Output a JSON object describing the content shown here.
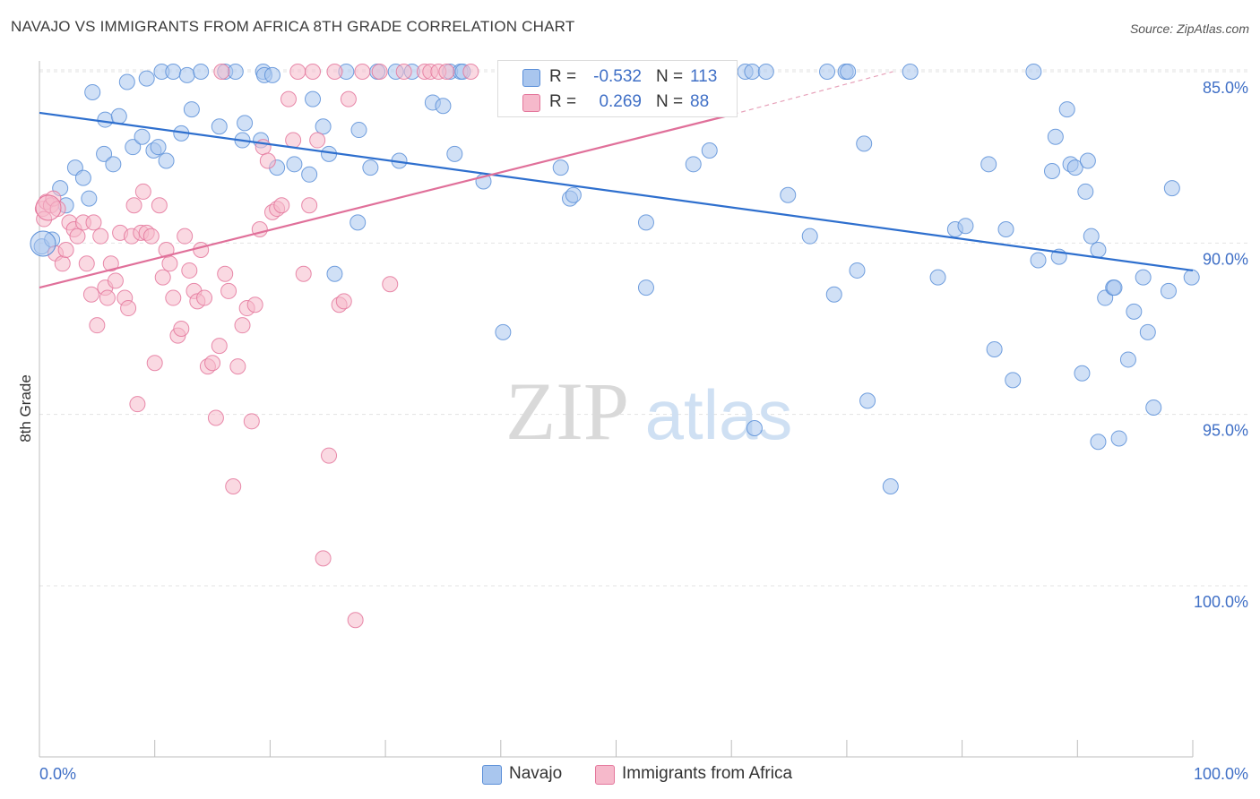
{
  "title": "NAVAJO VS IMMIGRANTS FROM AFRICA 8TH GRADE CORRELATION CHART",
  "source": "Source: ZipAtlas.com",
  "watermark": {
    "zip": "ZIP",
    "atlas": "atlas"
  },
  "legend": {
    "rows": [
      {
        "r_label": "R =",
        "r_value": "-0.532",
        "n_label": "N =",
        "n_value": "113",
        "color": "#a9c6ee"
      },
      {
        "r_label": "R =",
        "r_value": "0.269",
        "n_label": "N =",
        "n_value": "88",
        "color": "#f6b9cb"
      }
    ]
  },
  "bottom_legend": {
    "navajo": "Navajo",
    "africa": "Immigrants from Africa"
  },
  "axes": {
    "x_left": "0.0%",
    "x_right": "100.0%",
    "y_ticks": [
      "100.0%",
      "95.0%",
      "90.0%",
      "85.0%"
    ],
    "ylabel": "8th Grade"
  },
  "chart_data": {
    "type": "scatter",
    "xlabel": "",
    "ylabel": "8th Grade",
    "xlim": [
      0,
      100
    ],
    "ylim": [
      80.5,
      100.8
    ],
    "y_ticks": [
      85,
      90,
      95,
      100
    ],
    "grid": true,
    "series": [
      {
        "name": "Navajo",
        "color": "#5b8fd8",
        "fill": "#a9c6ee",
        "trend": {
          "x0": 0,
          "y0": 98.8,
          "x1": 100,
          "y1": 94.2
        },
        "points": [
          [
            0.2,
            94.9
          ],
          [
            1.1,
            95.1
          ],
          [
            1.8,
            96.6
          ],
          [
            2.3,
            96.1
          ],
          [
            3.1,
            97.2
          ],
          [
            3.8,
            96.9
          ],
          [
            4.3,
            96.3
          ],
          [
            4.6,
            99.4
          ],
          [
            5.6,
            97.6
          ],
          [
            5.7,
            98.6
          ],
          [
            6.4,
            97.3
          ],
          [
            6.9,
            98.7
          ],
          [
            7.6,
            99.7
          ],
          [
            8.1,
            97.8
          ],
          [
            8.9,
            98.1
          ],
          [
            9.3,
            99.8
          ],
          [
            9.9,
            97.7
          ],
          [
            10.3,
            97.8
          ],
          [
            10.6,
            100.0
          ],
          [
            11.0,
            97.4
          ],
          [
            11.6,
            100.0
          ],
          [
            12.3,
            98.2
          ],
          [
            12.8,
            99.9
          ],
          [
            13.2,
            98.9
          ],
          [
            14.0,
            100.0
          ],
          [
            15.6,
            98.4
          ],
          [
            16.1,
            100.0
          ],
          [
            17.0,
            100.0
          ],
          [
            17.6,
            98.0
          ],
          [
            17.8,
            98.5
          ],
          [
            19.2,
            98.0
          ],
          [
            19.4,
            100.0
          ],
          [
            19.5,
            99.9
          ],
          [
            20.2,
            99.9
          ],
          [
            20.6,
            97.2
          ],
          [
            22.1,
            97.3
          ],
          [
            23.4,
            97.0
          ],
          [
            23.7,
            99.2
          ],
          [
            24.6,
            98.4
          ],
          [
            25.1,
            97.6
          ],
          [
            25.6,
            94.1
          ],
          [
            26.6,
            100.0
          ],
          [
            27.6,
            95.6
          ],
          [
            27.7,
            98.3
          ],
          [
            28.7,
            97.2
          ],
          [
            29.3,
            100.0
          ],
          [
            30.9,
            100.0
          ],
          [
            31.2,
            97.4
          ],
          [
            32.3,
            100.0
          ],
          [
            34.1,
            99.1
          ],
          [
            35.0,
            99.0
          ],
          [
            35.6,
            100.0
          ],
          [
            36.0,
            97.6
          ],
          [
            36.5,
            100.0
          ],
          [
            36.7,
            100.0
          ],
          [
            38.5,
            96.8
          ],
          [
            40.2,
            92.4
          ],
          [
            45.2,
            97.2
          ],
          [
            46.0,
            96.3
          ],
          [
            46.3,
            96.4
          ],
          [
            52.6,
            95.6
          ],
          [
            52.6,
            93.7
          ],
          [
            54.3,
            100.0
          ],
          [
            56.7,
            97.3
          ],
          [
            58.1,
            97.7
          ],
          [
            61.2,
            100.0
          ],
          [
            61.8,
            100.0
          ],
          [
            62.0,
            89.6
          ],
          [
            63.0,
            100.0
          ],
          [
            64.9,
            96.4
          ],
          [
            66.8,
            95.2
          ],
          [
            68.3,
            100.0
          ],
          [
            68.9,
            93.5
          ],
          [
            69.9,
            100.0
          ],
          [
            70.1,
            100.0
          ],
          [
            70.9,
            94.2
          ],
          [
            71.5,
            97.9
          ],
          [
            71.8,
            90.4
          ],
          [
            73.8,
            87.9
          ],
          [
            75.5,
            100.0
          ],
          [
            77.9,
            94.0
          ],
          [
            79.4,
            95.4
          ],
          [
            80.3,
            95.5
          ],
          [
            82.3,
            97.3
          ],
          [
            82.8,
            91.9
          ],
          [
            83.8,
            95.4
          ],
          [
            84.4,
            91.0
          ],
          [
            86.2,
            100.0
          ],
          [
            86.6,
            94.5
          ],
          [
            87.8,
            97.1
          ],
          [
            88.1,
            98.1
          ],
          [
            88.4,
            94.6
          ],
          [
            89.1,
            98.9
          ],
          [
            89.4,
            97.3
          ],
          [
            89.8,
            97.2
          ],
          [
            90.4,
            91.2
          ],
          [
            90.7,
            96.5
          ],
          [
            90.9,
            97.4
          ],
          [
            91.2,
            95.2
          ],
          [
            91.8,
            89.2
          ],
          [
            91.8,
            94.8
          ],
          [
            92.4,
            93.4
          ],
          [
            93.1,
            93.7
          ],
          [
            93.2,
            93.7
          ],
          [
            93.6,
            89.3
          ],
          [
            94.4,
            91.6
          ],
          [
            94.9,
            93.0
          ],
          [
            95.7,
            94.0
          ],
          [
            96.1,
            92.4
          ],
          [
            96.6,
            90.2
          ],
          [
            97.9,
            93.6
          ],
          [
            98.2,
            96.6
          ],
          [
            99.9,
            94.0
          ]
        ]
      },
      {
        "name": "Immigrants from Africa",
        "color": "#e4779c",
        "fill": "#f6b9cb",
        "trend": {
          "x0": 0,
          "y0": 93.7,
          "x1": 59.5,
          "y1": 98.7
        },
        "trend_dashed": {
          "x0": 59.5,
          "y0": 98.7,
          "x1": 74.0,
          "y1": 100.0
        },
        "points": [
          [
            0.3,
            96.0
          ],
          [
            0.4,
            95.7
          ],
          [
            0.6,
            96.2
          ],
          [
            1.0,
            96.1
          ],
          [
            1.2,
            96.3
          ],
          [
            1.4,
            94.7
          ],
          [
            1.6,
            96.0
          ],
          [
            2.0,
            94.4
          ],
          [
            2.3,
            94.8
          ],
          [
            2.6,
            95.6
          ],
          [
            3.0,
            95.4
          ],
          [
            3.3,
            95.2
          ],
          [
            3.8,
            95.6
          ],
          [
            4.1,
            94.4
          ],
          [
            4.5,
            93.5
          ],
          [
            4.7,
            95.6
          ],
          [
            5.0,
            92.6
          ],
          [
            5.3,
            95.2
          ],
          [
            5.7,
            93.7
          ],
          [
            5.9,
            93.4
          ],
          [
            6.2,
            94.4
          ],
          [
            6.6,
            93.9
          ],
          [
            7.0,
            95.3
          ],
          [
            7.4,
            93.4
          ],
          [
            7.7,
            93.1
          ],
          [
            8.0,
            95.2
          ],
          [
            8.2,
            96.1
          ],
          [
            8.5,
            90.3
          ],
          [
            8.8,
            95.3
          ],
          [
            9.0,
            96.5
          ],
          [
            9.3,
            95.3
          ],
          [
            9.7,
            95.2
          ],
          [
            10.0,
            91.5
          ],
          [
            10.4,
            96.1
          ],
          [
            10.7,
            94.0
          ],
          [
            11.0,
            94.8
          ],
          [
            11.3,
            94.4
          ],
          [
            11.6,
            93.4
          ],
          [
            12.0,
            92.3
          ],
          [
            12.3,
            92.5
          ],
          [
            12.6,
            95.2
          ],
          [
            13.0,
            94.2
          ],
          [
            13.4,
            93.6
          ],
          [
            13.7,
            93.3
          ],
          [
            14.0,
            94.8
          ],
          [
            14.3,
            93.4
          ],
          [
            14.6,
            91.4
          ],
          [
            15.0,
            91.5
          ],
          [
            15.3,
            89.9
          ],
          [
            15.6,
            92.0
          ],
          [
            15.8,
            100.0
          ],
          [
            16.1,
            94.1
          ],
          [
            16.4,
            93.6
          ],
          [
            16.8,
            87.9
          ],
          [
            17.2,
            91.4
          ],
          [
            17.6,
            92.6
          ],
          [
            18.0,
            93.1
          ],
          [
            18.4,
            89.8
          ],
          [
            18.7,
            93.2
          ],
          [
            19.1,
            95.4
          ],
          [
            19.4,
            97.8
          ],
          [
            19.8,
            97.4
          ],
          [
            20.2,
            95.9
          ],
          [
            20.6,
            96.0
          ],
          [
            21.0,
            96.1
          ],
          [
            21.6,
            99.2
          ],
          [
            22.0,
            98.0
          ],
          [
            22.4,
            100.0
          ],
          [
            22.9,
            94.1
          ],
          [
            23.4,
            96.1
          ],
          [
            23.7,
            100.0
          ],
          [
            24.1,
            98.0
          ],
          [
            24.6,
            85.8
          ],
          [
            25.1,
            88.8
          ],
          [
            25.6,
            100.0
          ],
          [
            26.0,
            93.2
          ],
          [
            26.4,
            93.3
          ],
          [
            26.8,
            99.2
          ],
          [
            27.4,
            84.0
          ],
          [
            28.0,
            100.0
          ],
          [
            29.5,
            100.0
          ],
          [
            30.4,
            93.8
          ],
          [
            31.6,
            100.0
          ],
          [
            33.4,
            100.0
          ],
          [
            33.9,
            100.0
          ],
          [
            34.6,
            100.0
          ],
          [
            35.3,
            100.0
          ],
          [
            37.4,
            100.0
          ]
        ]
      }
    ]
  }
}
